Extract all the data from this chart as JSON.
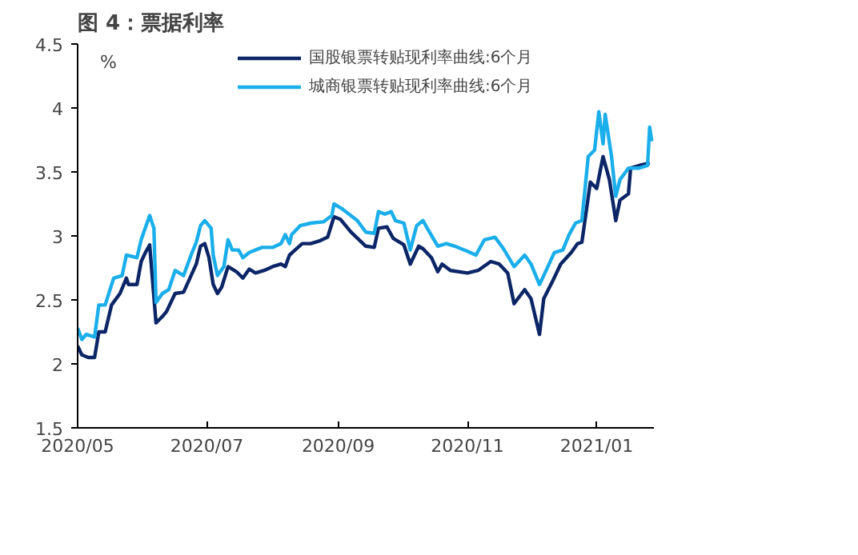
{
  "chart_data": {
    "type": "line",
    "title": "图 4：票据利率",
    "ylabel": "%",
    "xlim": [
      "2020-05-01",
      "2021-01-28"
    ],
    "xticks": [
      {
        "value": "2020-05-01",
        "label": "2020/05"
      },
      {
        "value": "2020-07-01",
        "label": "2020/07"
      },
      {
        "value": "2020-09-01",
        "label": "2020/09"
      },
      {
        "value": "2020-11-01",
        "label": "2020/11"
      },
      {
        "value": "2021-01-01",
        "label": "2021/01"
      }
    ],
    "ylim": [
      1.5,
      4.5
    ],
    "yticks": [
      1.5,
      2,
      2.5,
      3,
      3.5,
      4,
      4.5
    ],
    "grid": false,
    "legend": "top",
    "marker": "none",
    "line_style": "solid",
    "series": [
      {
        "name": "国股银票转贴现利率曲线:6个月",
        "color": "#0b2566",
        "x": [
          "2020-05-01",
          "2020-05-03",
          "2020-05-06",
          "2020-05-09",
          "2020-05-11",
          "2020-05-14",
          "2020-05-17",
          "2020-05-21",
          "2020-05-24",
          "2020-05-25",
          "2020-05-29",
          "2020-05-31",
          "2020-06-02",
          "2020-06-04",
          "2020-06-07",
          "2020-06-10",
          "2020-06-12",
          "2020-06-16",
          "2020-06-20",
          "2020-06-23",
          "2020-06-26",
          "2020-06-28",
          "2020-06-30",
          "2020-07-02",
          "2020-07-04",
          "2020-07-06",
          "2020-07-08",
          "2020-07-11",
          "2020-07-15",
          "2020-07-18",
          "2020-07-21",
          "2020-07-24",
          "2020-07-28",
          "2020-08-01",
          "2020-08-05",
          "2020-08-07",
          "2020-08-09",
          "2020-08-11",
          "2020-08-15",
          "2020-08-19",
          "2020-08-23",
          "2020-08-27",
          "2020-08-30",
          "2020-09-02",
          "2020-09-07",
          "2020-09-14",
          "2020-09-18",
          "2020-09-20",
          "2020-09-24",
          "2020-09-27",
          "2020-10-02",
          "2020-10-05",
          "2020-10-09",
          "2020-10-11",
          "2020-10-15",
          "2020-10-18",
          "2020-10-20",
          "2020-10-24",
          "2020-11-01",
          "2020-11-06",
          "2020-11-12",
          "2020-11-16",
          "2020-11-20",
          "2020-11-23",
          "2020-11-28",
          "2020-12-01",
          "2020-12-05",
          "2020-12-07",
          "2020-12-11",
          "2020-12-15",
          "2020-12-20",
          "2020-12-23",
          "2020-12-25",
          "2020-12-29",
          "2021-01-01",
          "2021-01-04",
          "2021-01-07",
          "2021-01-10",
          "2021-01-12",
          "2021-01-16",
          "2021-01-17",
          "2021-01-21",
          "2021-01-26"
        ],
        "values": [
          2.14,
          2.07,
          2.05,
          2.05,
          2.25,
          2.25,
          2.46,
          2.55,
          2.67,
          2.62,
          2.62,
          2.8,
          2.87,
          2.93,
          2.32,
          2.37,
          2.41,
          2.55,
          2.56,
          2.67,
          2.78,
          2.92,
          2.94,
          2.83,
          2.62,
          2.55,
          2.6,
          2.76,
          2.72,
          2.67,
          2.74,
          2.71,
          2.73,
          2.76,
          2.78,
          2.76,
          2.85,
          2.88,
          2.94,
          2.94,
          2.96,
          2.99,
          3.15,
          3.13,
          3.03,
          2.92,
          2.91,
          3.06,
          3.07,
          2.98,
          2.93,
          2.78,
          2.92,
          2.9,
          2.83,
          2.72,
          2.78,
          2.73,
          2.71,
          2.73,
          2.8,
          2.78,
          2.71,
          2.47,
          2.58,
          2.51,
          2.23,
          2.51,
          2.64,
          2.78,
          2.87,
          2.94,
          2.95,
          3.42,
          3.37,
          3.62,
          3.44,
          3.12,
          3.28,
          3.33,
          3.53,
          3.55,
          3.57
        ]
      },
      {
        "name": "城商银票转贴现利率曲线:6个月",
        "color": "#1aaeea",
        "x": [
          "2020-05-01",
          "2020-05-03",
          "2020-05-05",
          "2020-05-09",
          "2020-05-11",
          "2020-05-14",
          "2020-05-18",
          "2020-05-22",
          "2020-05-24",
          "2020-05-29",
          "2020-05-31",
          "2020-06-04",
          "2020-06-06",
          "2020-06-07",
          "2020-06-10",
          "2020-06-13",
          "2020-06-16",
          "2020-06-20",
          "2020-06-24",
          "2020-06-26",
          "2020-06-28",
          "2020-06-30",
          "2020-07-03",
          "2020-07-04",
          "2020-07-06",
          "2020-07-09",
          "2020-07-11",
          "2020-07-13",
          "2020-07-16",
          "2020-07-18",
          "2020-07-21",
          "2020-07-27",
          "2020-08-01",
          "2020-08-05",
          "2020-08-07",
          "2020-08-09",
          "2020-08-10",
          "2020-08-14",
          "2020-08-19",
          "2020-08-25",
          "2020-08-29",
          "2020-08-30",
          "2020-09-03",
          "2020-09-10",
          "2020-09-14",
          "2020-09-18",
          "2020-09-20",
          "2020-09-23",
          "2020-09-26",
          "2020-09-28",
          "2020-10-02",
          "2020-10-05",
          "2020-10-08",
          "2020-10-11",
          "2020-10-13",
          "2020-10-18",
          "2020-10-22",
          "2020-10-26",
          "2020-11-01",
          "2020-11-05",
          "2020-11-09",
          "2020-11-14",
          "2020-11-18",
          "2020-11-23",
          "2020-11-28",
          "2020-12-01",
          "2020-12-05",
          "2020-12-07",
          "2020-12-12",
          "2020-12-16",
          "2020-12-19",
          "2020-12-22",
          "2020-12-25",
          "2020-12-28",
          "2020-12-31",
          "2021-01-02",
          "2021-01-04",
          "2021-01-05",
          "2021-01-08",
          "2021-01-10",
          "2021-01-12",
          "2021-01-16",
          "2021-01-21",
          "2021-01-25",
          "2021-01-26",
          "2021-01-27"
        ],
        "values": [
          2.28,
          2.19,
          2.23,
          2.21,
          2.46,
          2.46,
          2.67,
          2.69,
          2.85,
          2.83,
          2.97,
          3.16,
          3.06,
          2.48,
          2.55,
          2.58,
          2.73,
          2.69,
          2.87,
          2.95,
          3.08,
          3.12,
          3.06,
          2.85,
          2.69,
          2.76,
          2.97,
          2.89,
          2.89,
          2.83,
          2.87,
          2.91,
          2.91,
          2.94,
          3.01,
          2.94,
          3.01,
          3.08,
          3.1,
          3.11,
          3.16,
          3.25,
          3.21,
          3.12,
          3.03,
          3.02,
          3.19,
          3.17,
          3.19,
          3.12,
          3.1,
          2.89,
          3.08,
          3.12,
          3.06,
          2.92,
          2.94,
          2.92,
          2.88,
          2.85,
          2.97,
          2.99,
          2.9,
          2.76,
          2.85,
          2.78,
          2.62,
          2.69,
          2.87,
          2.89,
          3.01,
          3.1,
          3.12,
          3.62,
          3.67,
          3.97,
          3.72,
          3.95,
          3.62,
          3.31,
          3.44,
          3.53,
          3.53,
          3.55,
          3.85,
          3.74
        ]
      }
    ]
  }
}
